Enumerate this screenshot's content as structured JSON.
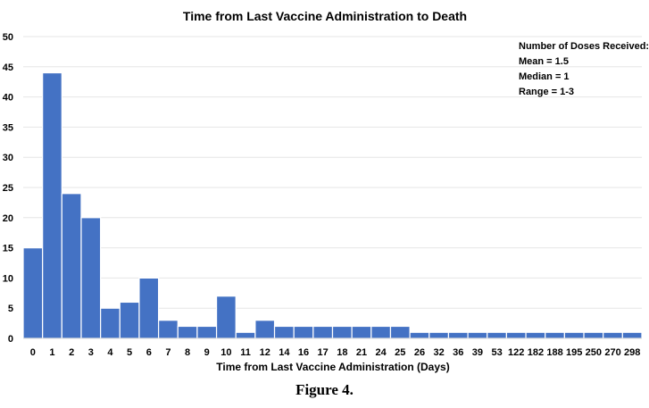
{
  "chart_data": {
    "type": "bar",
    "title": "Time from Last Vaccine Administration to Death",
    "xlabel": "Time from Last Vaccine Administration (Days)",
    "ylabel": "",
    "ylim": [
      0,
      50
    ],
    "yticks": [
      0,
      5,
      10,
      15,
      20,
      25,
      30,
      35,
      40,
      45,
      50
    ],
    "grid": true,
    "categories": [
      "0",
      "1",
      "2",
      "3",
      "4",
      "5",
      "6",
      "7",
      "8",
      "9",
      "10",
      "11",
      "12",
      "14",
      "16",
      "17",
      "18",
      "21",
      "24",
      "25",
      "26",
      "32",
      "36",
      "39",
      "53",
      "122",
      "182",
      "188",
      "195",
      "250",
      "270",
      "298"
    ],
    "values": [
      15,
      44,
      24,
      20,
      5,
      6,
      10,
      3,
      2,
      2,
      7,
      1,
      3,
      2,
      2,
      2,
      2,
      2,
      2,
      2,
      1,
      1,
      1,
      1,
      1,
      1,
      1,
      1,
      1,
      1,
      1,
      1
    ],
    "bar_color": "#4472c4",
    "annotation": [
      "Number of Doses Received:",
      "Mean = 1.5",
      "Median = 1",
      "Range = 1-3"
    ]
  },
  "figure_caption": "Figure 4."
}
